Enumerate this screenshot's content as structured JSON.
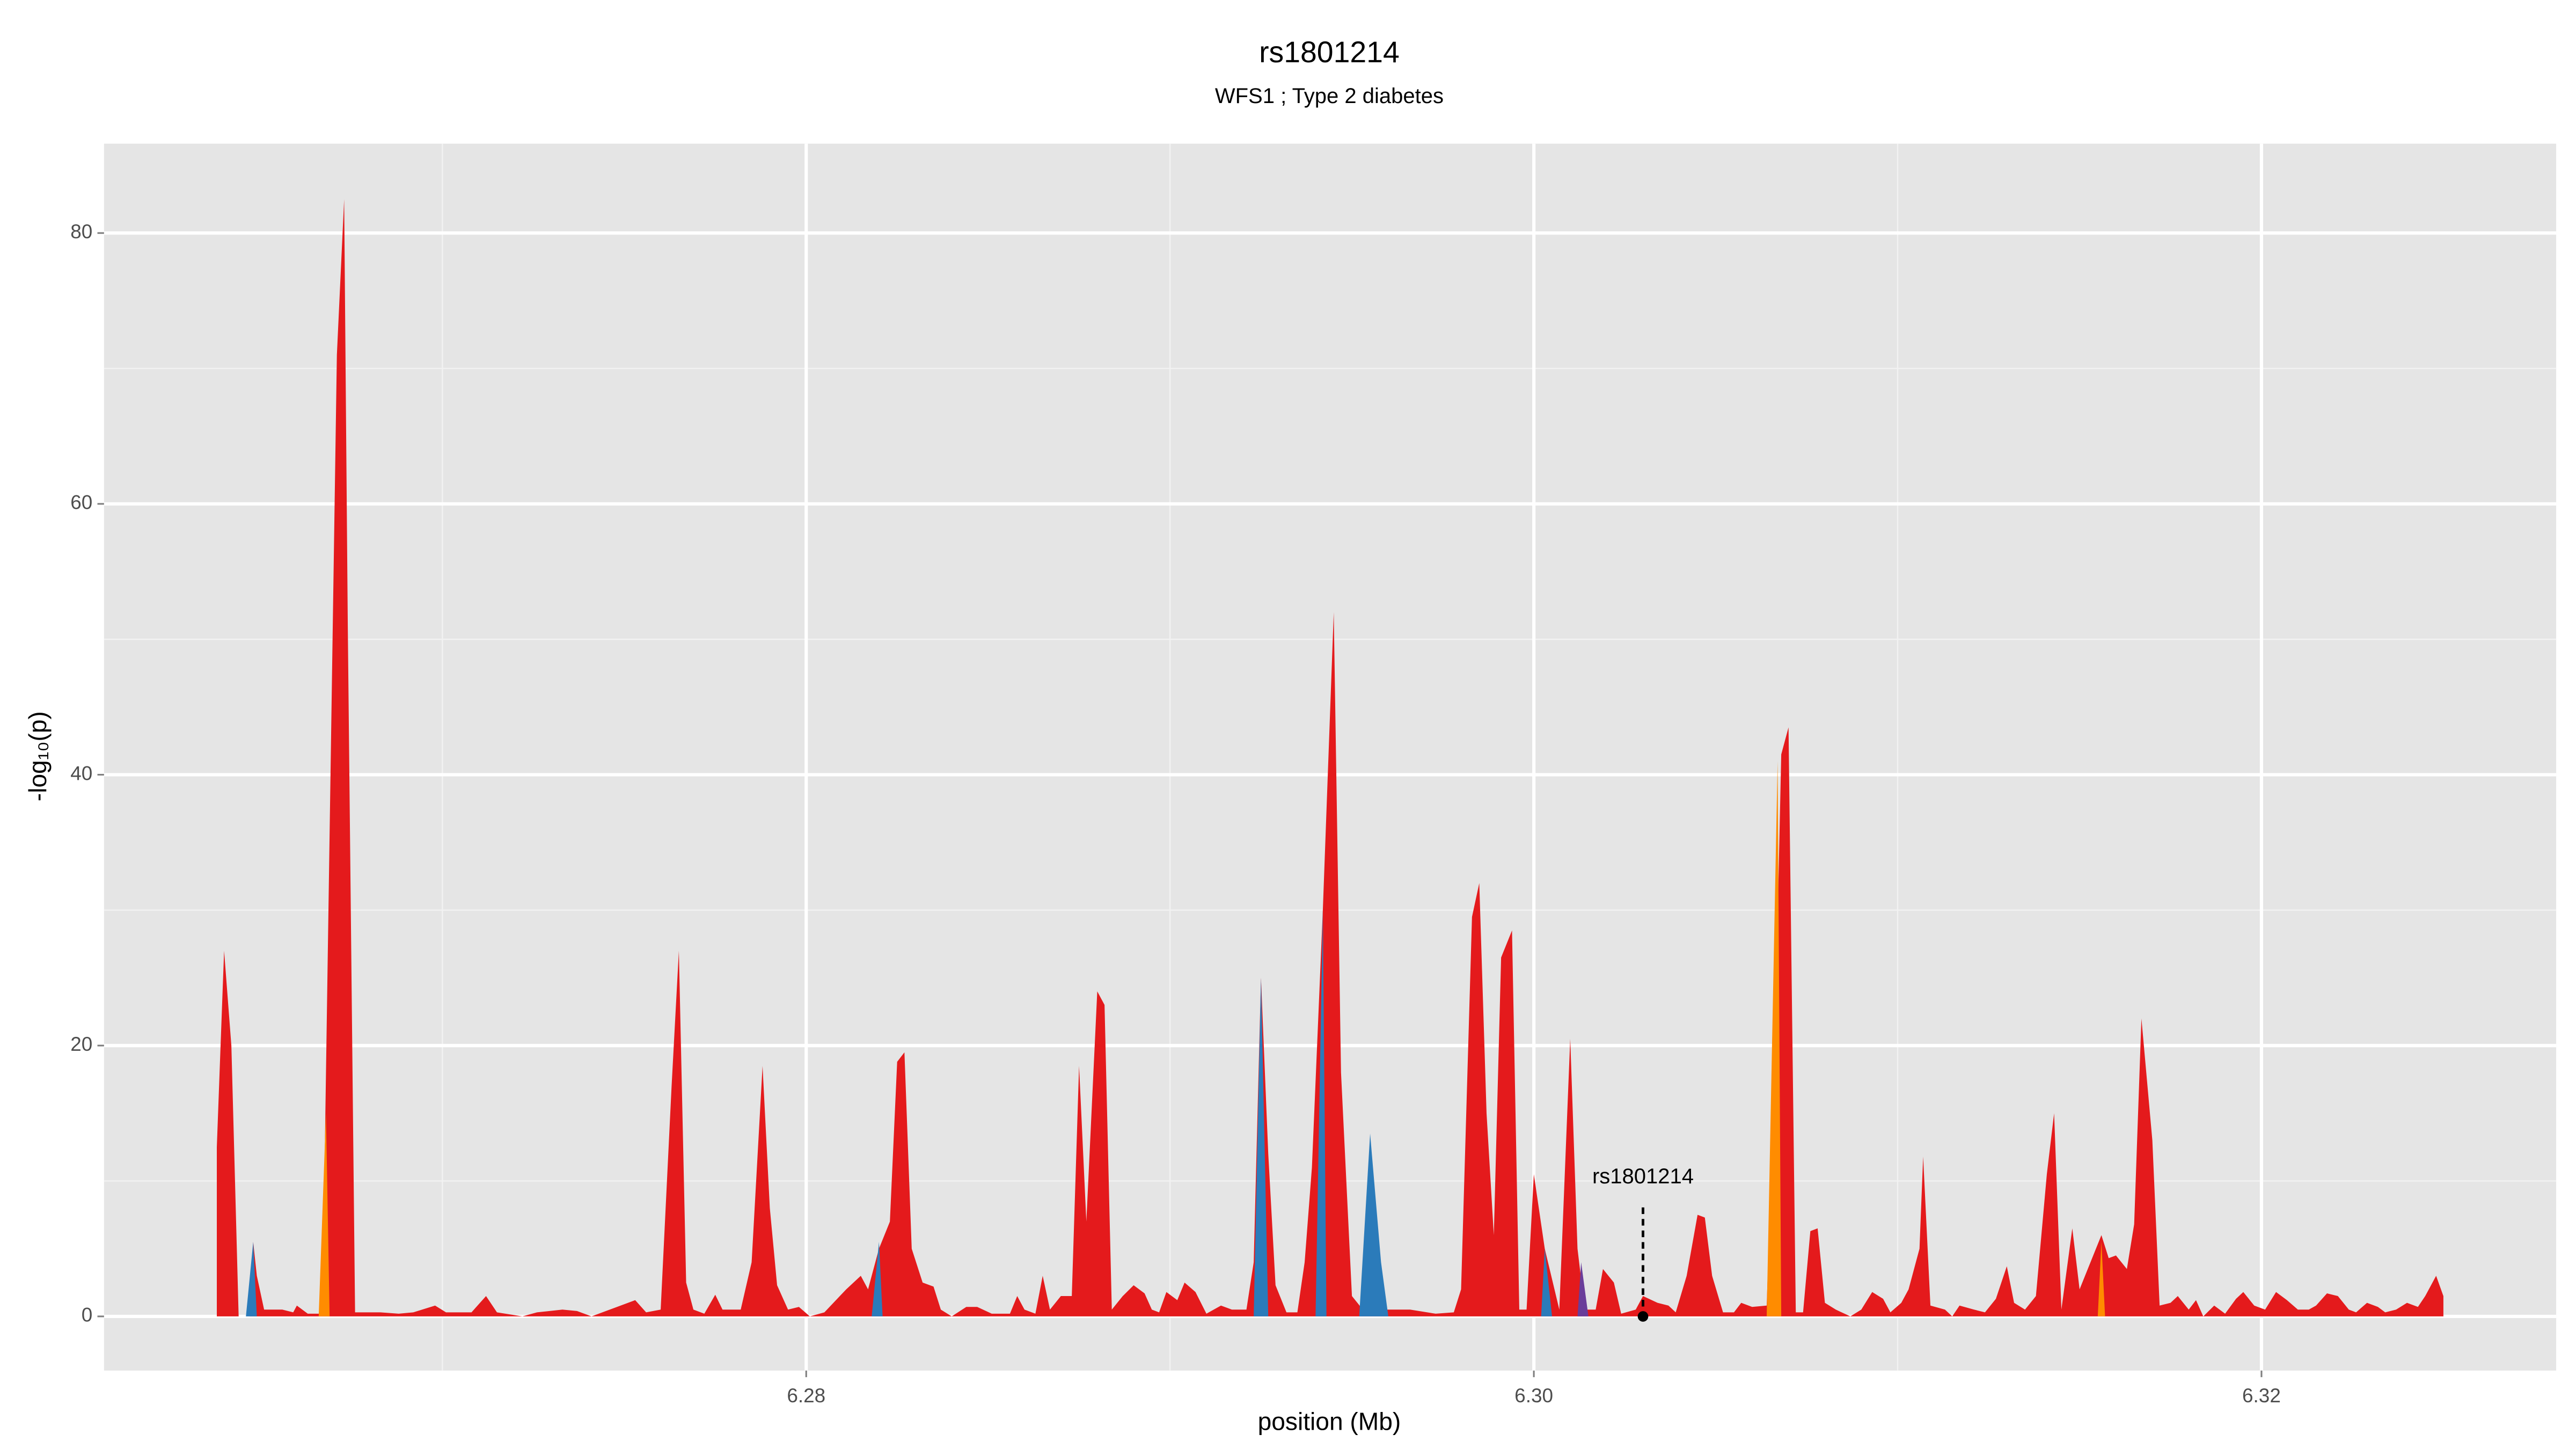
{
  "chart_data": {
    "type": "area",
    "title": "rs1801214",
    "subtitle": "WFS1 ; Type 2 diabetes",
    "x_label": "position (Mb)",
    "y_label": "-log₁₀(p)",
    "xlim": [
      6.2607,
      6.3281
    ],
    "ylim": [
      -4,
      86.6
    ],
    "xticks": [
      6.28,
      {
        "value": 6.3,
        "label": "6.30"
      },
      6.32
    ],
    "yticks": [
      0,
      20,
      40,
      60,
      80
    ],
    "xminor": [
      6.27,
      6.29,
      6.31
    ],
    "yminor": [
      10,
      30,
      50,
      70
    ],
    "grid": true,
    "series": [
      {
        "color": "#e41a1c",
        "x": [
          6.2638,
          6.264,
          6.2642,
          6.2644,
          6.2647,
          6.2648,
          6.2649,
          6.2651,
          6.2656,
          6.2659,
          6.266,
          6.2663,
          6.2667,
          6.2671,
          6.2673,
          6.2674,
          6.2676,
          6.2683,
          6.2688,
          6.2692,
          6.2698,
          6.2701,
          6.2708,
          6.2712,
          6.2715,
          6.2722,
          6.2726,
          6.2733,
          6.2737,
          6.2741,
          6.2746,
          6.2753,
          6.2756,
          6.276,
          6.2763,
          6.2765,
          6.2767,
          6.2769,
          6.2772,
          6.2775,
          6.2777,
          6.2782,
          6.2785,
          6.2788,
          6.279,
          6.2792,
          6.2795,
          6.2798,
          6.2801,
          6.2805,
          6.2811,
          6.2815,
          6.2817,
          6.282,
          6.2823,
          6.2825,
          6.2827,
          6.2829,
          6.2832,
          6.2835,
          6.2837,
          6.284,
          6.2844,
          6.2847,
          6.2851,
          6.2856,
          6.2858,
          6.286,
          6.2863,
          6.2865,
          6.2867,
          6.287,
          6.2873,
          6.2875,
          6.2877,
          6.288,
          6.2882,
          6.2884,
          6.2887,
          6.289,
          6.2893,
          6.2895,
          6.2897,
          6.2899,
          6.2902,
          6.2904,
          6.2907,
          6.291,
          6.2914,
          6.2917,
          6.2921,
          6.2923,
          6.2925,
          6.2927,
          6.2929,
          6.2932,
          6.2935,
          6.2937,
          6.2939,
          6.2942,
          6.2945,
          6.2947,
          6.295,
          6.2953,
          6.296,
          6.2966,
          6.2973,
          6.2978,
          6.298,
          6.2983,
          6.2985,
          6.2987,
          6.2989,
          6.2991,
          6.2994,
          6.2996,
          6.2998,
          6.3,
          6.3003,
          6.3007,
          6.301,
          6.3012,
          6.3014,
          6.3017,
          6.3019,
          6.3022,
          6.3024,
          6.3028,
          6.303,
          6.3034,
          6.3037,
          6.3039,
          6.3042,
          6.3045,
          6.3047,
          6.3049,
          6.3052,
          6.3055,
          6.3057,
          6.306,
          6.3064,
          6.3066,
          6.3068,
          6.307,
          6.3072,
          6.3074,
          6.3076,
          6.3078,
          6.308,
          6.3083,
          6.3087,
          6.309,
          6.3093,
          6.3096,
          6.3098,
          6.3101,
          6.3103,
          6.3106,
          6.3107,
          6.3109,
          6.3113,
          6.3115,
          6.3117,
          6.3121,
          6.3124,
          6.3127,
          6.313,
          6.3132,
          6.3135,
          6.3138,
          6.3141,
          6.3143,
          6.3145,
          6.3148,
          6.315,
          6.3153,
          6.3156,
          6.3158,
          6.316,
          6.3163,
          6.3165,
          6.3167,
          6.317,
          6.3172,
          6.3175,
          6.3177,
          6.318,
          6.3182,
          6.3184,
          6.3187,
          6.319,
          6.3193,
          6.3195,
          6.3198,
          6.3201,
          6.3204,
          6.3207,
          6.321,
          6.3213,
          6.3215,
          6.3218,
          6.3221,
          6.3224,
          6.3226,
          6.3229,
          6.3232,
          6.3234,
          6.3237,
          6.324,
          6.3243,
          6.3245,
          6.3248,
          6.325
        ],
        "values": [
          12.5,
          27,
          20,
          0,
          0,
          5.5,
          3,
          0.5,
          0.5,
          0.3,
          0.8,
          0.2,
          0.2,
          71,
          82.5,
          51,
          0.3,
          0.3,
          0.2,
          0.3,
          0.8,
          0.3,
          0.3,
          1.5,
          0.3,
          0,
          0.3,
          0.5,
          0.4,
          0,
          0.5,
          1.2,
          0.3,
          0.5,
          17,
          27,
          2.5,
          0.5,
          0.2,
          1.6,
          0.5,
          0.5,
          4,
          18.5,
          8,
          2.3,
          0.5,
          0.7,
          0,
          0.3,
          2,
          3,
          2,
          5,
          7,
          18.8,
          19.5,
          5,
          2.5,
          2.2,
          0.5,
          0,
          0.7,
          0.7,
          0.2,
          0.2,
          1.5,
          0.5,
          0.2,
          3,
          0.5,
          1.5,
          1.5,
          18.5,
          7,
          24,
          23,
          0.5,
          1.5,
          2.3,
          1.7,
          0.5,
          0.3,
          1.8,
          1.2,
          2.5,
          1.8,
          0.2,
          0.8,
          0.5,
          0.5,
          4,
          25,
          12,
          2.3,
          0.3,
          0.3,
          4,
          11,
          30,
          52,
          18,
          1.5,
          0.5,
          0.5,
          0.5,
          0.2,
          0.3,
          2,
          29.5,
          32,
          15,
          6,
          26.5,
          28.5,
          0.5,
          0.5,
          10.5,
          5,
          0.5,
          20.5,
          5,
          0.5,
          0.5,
          3.5,
          2.5,
          0.2,
          0.5,
          1.5,
          1,
          0.8,
          0.3,
          3,
          7.5,
          7.3,
          3,
          0.3,
          0.3,
          1,
          0.7,
          0.8,
          17,
          41.5,
          43.5,
          0.3,
          0.3,
          6.3,
          6.5,
          1,
          0.5,
          0,
          0.5,
          1.8,
          1.3,
          0.3,
          1,
          2,
          5,
          11.8,
          0.8,
          0.5,
          0,
          0.8,
          0.5,
          0.3,
          1.3,
          3.7,
          1,
          0.5,
          1.5,
          10.5,
          15,
          0.5,
          6.5,
          2,
          4,
          6,
          4.3,
          4.5,
          3.5,
          6.8,
          22,
          13,
          0.8,
          1,
          1.5,
          0.5,
          1.2,
          0,
          0.8,
          0.2,
          1.3,
          1.8,
          0.8,
          0.5,
          1.8,
          1.2,
          0.5,
          0.5,
          0.8,
          1.7,
          1.5,
          0.5,
          0.3,
          1,
          0.7,
          0.3,
          0.5,
          1,
          0.7,
          1.5,
          3,
          1.5
        ]
      },
      {
        "color": "#2b7bba",
        "x": [
          6.2646,
          6.2648,
          6.2649,
          6.2649,
          6.2818,
          6.282,
          6.2821,
          6.2821,
          6.2923,
          6.2925,
          6.2927,
          6.2927,
          6.294,
          6.2942,
          6.2943,
          6.2943,
          6.2952,
          6.2955,
          6.2958,
          6.296,
          6.296,
          6.3002,
          6.3003,
          6.3005
        ],
        "values": [
          0,
          5.5,
          0,
          null,
          0,
          5.5,
          0,
          null,
          0,
          25,
          0,
          null,
          0,
          30,
          0,
          null,
          0,
          13.5,
          4,
          0,
          null,
          0,
          5,
          0
        ]
      },
      {
        "color": "#ff8c00",
        "x": [
          6.2666,
          6.2668,
          6.2669,
          6.2669,
          6.3064,
          6.3067,
          6.3068,
          6.3068,
          6.3155,
          6.3156,
          6.3157
        ],
        "values": [
          0,
          15,
          0,
          null,
          0,
          41,
          0,
          null,
          0,
          5.5,
          0
        ]
      },
      {
        "color": "#6a3d9a",
        "x": [
          6.3012,
          6.3013,
          6.3015
        ],
        "values": [
          0,
          4,
          0
        ]
      }
    ],
    "annotation": {
      "text": "rs1801214",
      "x": 6.303,
      "y": 0
    }
  }
}
